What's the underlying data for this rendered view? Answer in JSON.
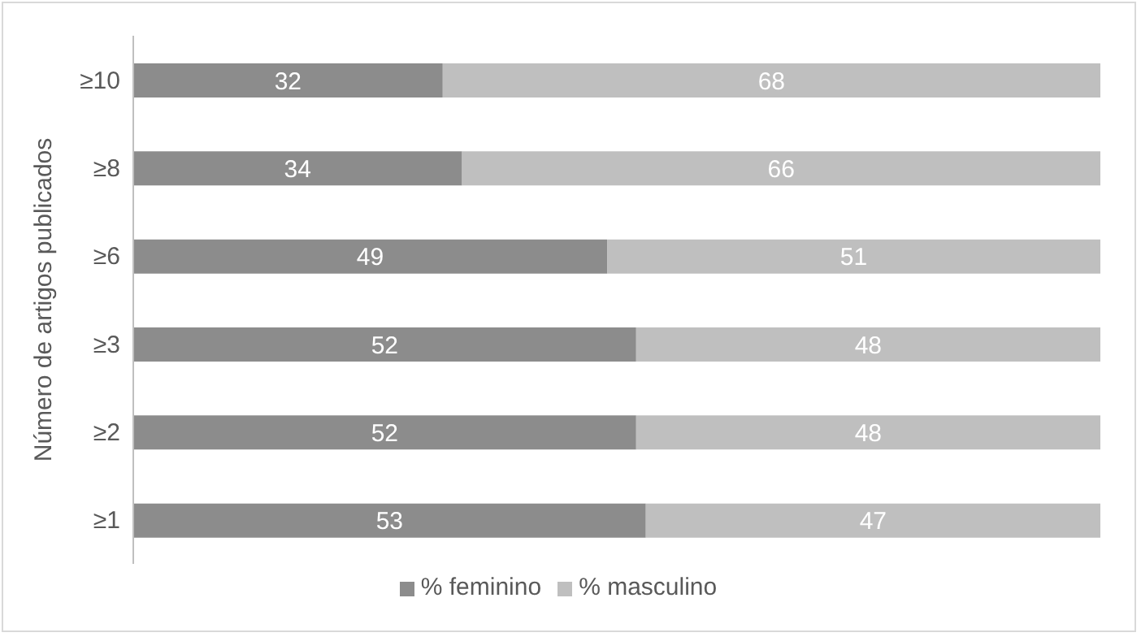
{
  "chart_data": {
    "type": "bar",
    "orientation": "horizontal",
    "stacked": true,
    "ylabel": "Número de artigos publicados",
    "categories": [
      "≥10",
      "≥8",
      "≥6",
      "≥3",
      "≥2",
      "≥1"
    ],
    "series": [
      {
        "name": "% feminino",
        "color": "#8c8c8c",
        "values": [
          32,
          34,
          49,
          52,
          52,
          53
        ]
      },
      {
        "name": "% masculino",
        "color": "#bfbfbf",
        "values": [
          68,
          66,
          51,
          48,
          48,
          47
        ]
      }
    ],
    "data_labels": true,
    "legend": "bottom",
    "grid": false,
    "tick_labels": "y"
  }
}
